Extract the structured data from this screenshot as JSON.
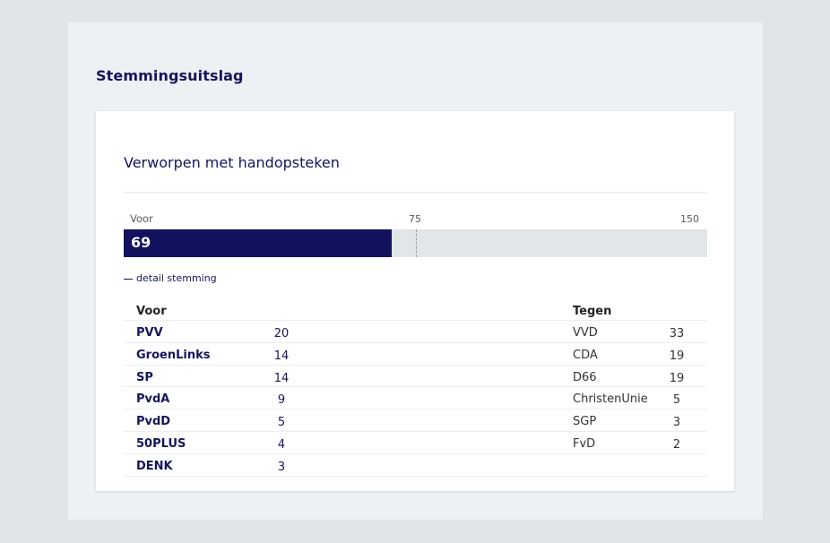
{
  "page": {
    "title": "Stemmingsuitslag"
  },
  "result": {
    "title": "Verworpen met handopsteken",
    "bar": {
      "label": "Voor",
      "value": 69,
      "value_text": "69",
      "midpoint": 75,
      "midpoint_text": "75",
      "max": 150,
      "max_text": "150"
    },
    "detail_toggle": "detail stemming",
    "voor": {
      "heading": "Voor",
      "rows": [
        {
          "party": "PVV",
          "seats": "20"
        },
        {
          "party": "GroenLinks",
          "seats": "14"
        },
        {
          "party": "SP",
          "seats": "14"
        },
        {
          "party": "PvdA",
          "seats": "9"
        },
        {
          "party": "PvdD",
          "seats": "5"
        },
        {
          "party": "50PLUS",
          "seats": "4"
        },
        {
          "party": "DENK",
          "seats": "3"
        }
      ]
    },
    "tegen": {
      "heading": "Tegen",
      "rows": [
        {
          "party": "VVD",
          "seats": "33"
        },
        {
          "party": "CDA",
          "seats": "19"
        },
        {
          "party": "D66",
          "seats": "19"
        },
        {
          "party": "ChristenUnie",
          "seats": "5"
        },
        {
          "party": "SGP",
          "seats": "3"
        },
        {
          "party": "FvD",
          "seats": "2"
        }
      ]
    },
    "colors": {
      "voor_bar": "#12125f",
      "track": "#e1e6e9",
      "text": "#15155c"
    }
  }
}
